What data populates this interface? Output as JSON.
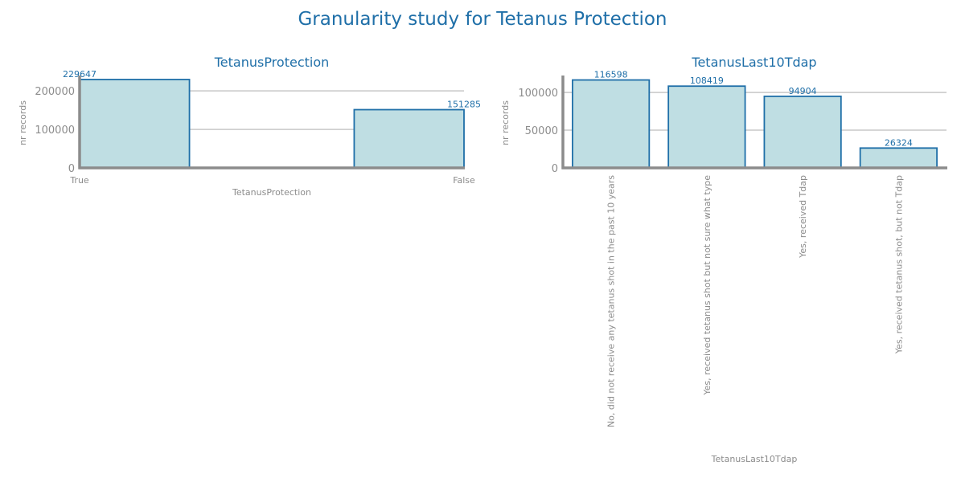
{
  "figure": {
    "suptitle": "Granularity study for Tetanus Protection"
  },
  "colors": {
    "title": "#1f6fa8",
    "bar_fill": "#bfdee3",
    "bar_edge": "#1f6fa8",
    "grid": "#c8c8c8",
    "axis": "#8c8c8c",
    "tick_text": "#8c8c8c",
    "data_label": "#1f6fa8"
  },
  "chart_data": [
    {
      "type": "bar",
      "title": "TetanusProtection",
      "xlabel": "TetanusProtection",
      "ylabel": "nr records",
      "categories": [
        "True",
        "False"
      ],
      "values": [
        229647,
        151285
      ],
      "data_labels": [
        "229647",
        "151285"
      ],
      "yticks": [
        0,
        100000,
        200000
      ],
      "ytick_labels": [
        "0",
        "100000",
        "200000"
      ],
      "ylim": [
        0,
        240000
      ],
      "grid": "horizontal",
      "legend": "none"
    },
    {
      "type": "bar",
      "title": "TetanusLast10Tdap",
      "xlabel": "TetanusLast10Tdap",
      "ylabel": "nr records",
      "categories": [
        "No, did not receive any tetanus shot in the past 10 years",
        "Yes, received tetanus shot but not sure what type",
        "Yes, received Tdap",
        "Yes, received tetanus shot, but not Tdap"
      ],
      "values": [
        116598,
        108419,
        94904,
        26324
      ],
      "data_labels": [
        "116598",
        "108419",
        "94904",
        "26324"
      ],
      "yticks": [
        0,
        50000,
        100000
      ],
      "ytick_labels": [
        "0",
        "50000",
        "100000"
      ],
      "ylim": [
        0,
        122500
      ],
      "grid": "horizontal",
      "legend": "none"
    }
  ]
}
